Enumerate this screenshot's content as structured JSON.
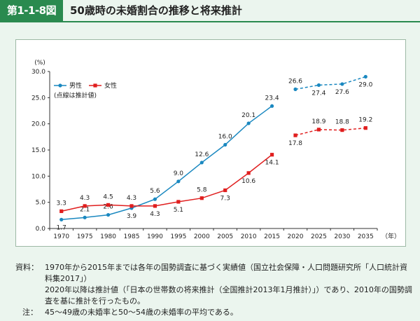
{
  "header": {
    "figure_number": "第1-1-8図",
    "title": "50歳時の未婚割合の推移と将来推計"
  },
  "colors": {
    "male": "#1a88c0",
    "female": "#e01e1e",
    "accent": "#2a8a4f"
  },
  "chart_data": {
    "type": "line",
    "y_unit_label": "(%)",
    "x_unit_label": "（年）",
    "ylim": [
      0,
      30
    ],
    "yticks": [
      "0.0",
      "5.0",
      "10.0",
      "15.0",
      "20.0",
      "25.0",
      "30.0"
    ],
    "categories": [
      "1970",
      "1975",
      "1980",
      "1985",
      "1990",
      "1995",
      "2000",
      "2005",
      "2010",
      "2015",
      "2020",
      "2025",
      "2030",
      "2035"
    ],
    "legend_note": "(点線は推計値)",
    "grid": false,
    "series": [
      {
        "name": "男性",
        "color": "#1a88c0",
        "marker": "circle",
        "values": [
          1.7,
          2.1,
          2.6,
          3.9,
          5.6,
          9.0,
          12.6,
          16.0,
          20.1,
          23.4,
          26.6,
          27.4,
          27.6,
          29.0
        ],
        "labels": [
          "1.7",
          "2.1",
          "2.6",
          "3.9",
          "5.6",
          "9.0",
          "12.6",
          "16.0",
          "20.1",
          "23.4",
          "26.6",
          "27.4",
          "27.6",
          "29.0"
        ],
        "actual_until_index": 9
      },
      {
        "name": "女性",
        "color": "#e01e1e",
        "marker": "square",
        "values": [
          3.3,
          4.3,
          4.5,
          4.3,
          4.3,
          5.1,
          5.8,
          7.3,
          10.6,
          14.1,
          17.8,
          18.9,
          18.8,
          19.2
        ],
        "labels": [
          "3.3",
          "4.3",
          "4.5",
          "4.3",
          "4.3",
          "5.1",
          "5.8",
          "7.3",
          "10.6",
          "14.1",
          "17.8",
          "18.9",
          "18.8",
          "19.2"
        ],
        "actual_until_index": 9
      }
    ]
  },
  "notes": {
    "source_label": "資料：",
    "source_line1": "1970年から2015年までは各年の国勢調査に基づく実績値（国立社会保障・人口問題研究所「人口統計資料集2017」）",
    "source_line2": "2020年以降は推計値（「日本の世帯数の将来推計（全国推計2013年1月推計）」）であり、2010年の国勢調査を基に推計を行ったもの。",
    "note_label": "注：",
    "note_text": "45〜49歳の未婚率と50〜54歳の未婚率の平均である。"
  }
}
